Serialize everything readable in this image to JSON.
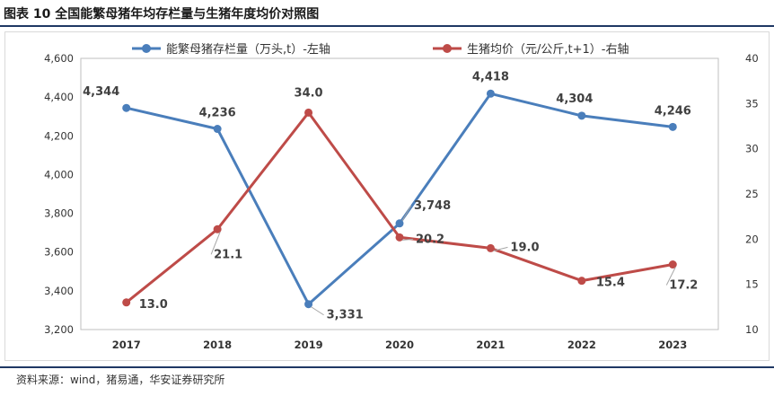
{
  "figure_title": "图表 10  全国能繁母猪年均存栏量与生猪年度均价对照图",
  "source_text": "资料来源：wind，猪易通，华安证券研究所",
  "chart_data": {
    "type": "line",
    "categories": [
      "2017",
      "2018",
      "2019",
      "2020",
      "2021",
      "2022",
      "2023"
    ],
    "series": [
      {
        "name": "能繁母猪存栏量（万头,t）-左轴",
        "axis": "left",
        "color": "#4a7ebb",
        "values": [
          4344,
          4236,
          3331,
          3748,
          4418,
          4304,
          4246
        ],
        "labels": [
          "4,344",
          "4,236",
          "3,331",
          "3,748",
          "4,418",
          "4,304",
          "4,246"
        ]
      },
      {
        "name": "生猪均价（元/公斤,t+1）-右轴",
        "axis": "right",
        "color": "#be4b48",
        "values": [
          13.0,
          21.1,
          34.0,
          20.2,
          19.0,
          15.4,
          17.2
        ],
        "labels": [
          "13.0",
          "21.1",
          "34.0",
          "20.2",
          "19.0",
          "15.4",
          "17.2"
        ]
      }
    ],
    "left_axis": {
      "ylim": [
        3200,
        4600
      ],
      "ticks": [
        3200,
        3400,
        3600,
        3800,
        4000,
        4200,
        4400,
        4600
      ],
      "tick_labels": [
        "3,200",
        "3,400",
        "3,600",
        "3,800",
        "4,000",
        "4,200",
        "4,400",
        "4,600"
      ]
    },
    "right_axis": {
      "ylim": [
        10,
        40
      ],
      "ticks": [
        10,
        15,
        20,
        25,
        30,
        35,
        40
      ],
      "tick_labels": [
        "10",
        "15",
        "20",
        "25",
        "30",
        "35",
        "40"
      ]
    },
    "legend_position": "top",
    "grid": false
  }
}
